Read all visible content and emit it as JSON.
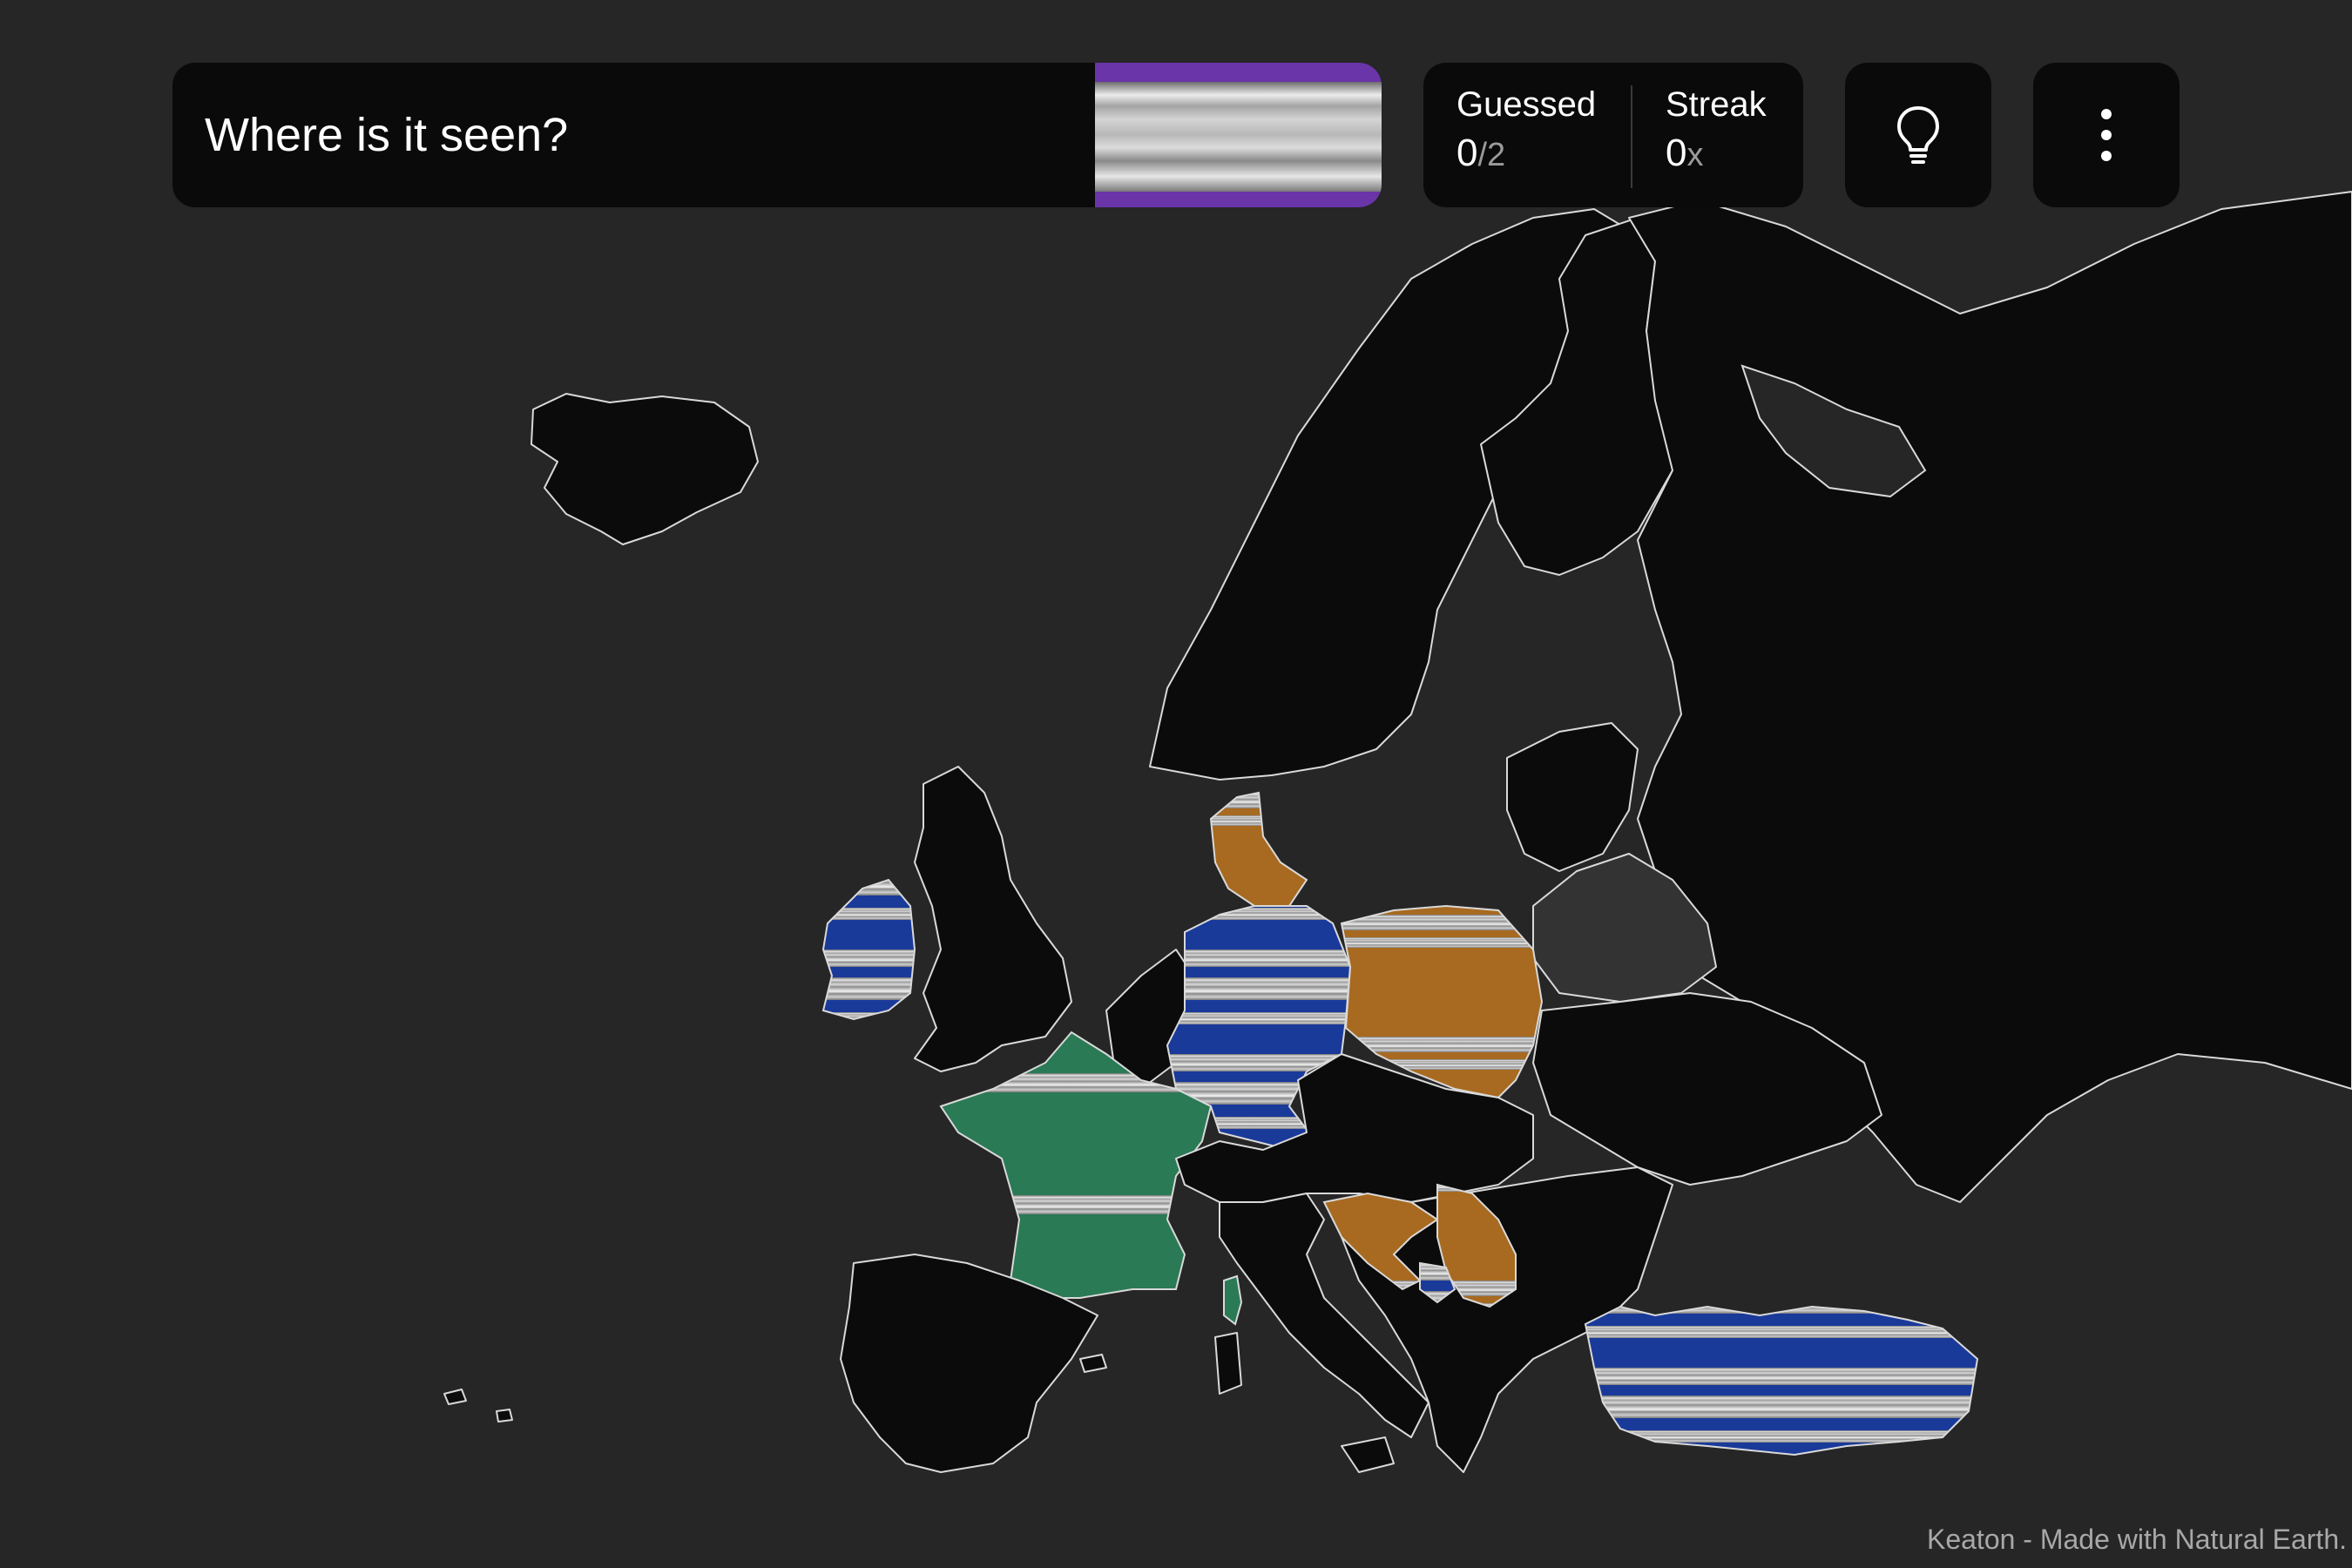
{
  "game": {
    "question": "Where is it seen?",
    "clue_image": "metallic-stripe-swatch",
    "colors": {
      "correct": "#2a7a55",
      "wrong_far": "#1a3a9a",
      "wrong_near": "#a86a20",
      "clue_border": "#6a35a8",
      "background": "#262626",
      "land": "#0b0b0b"
    }
  },
  "stats": {
    "guessed_label": "Guessed",
    "guessed_count": "0",
    "guessed_total": "/2",
    "streak_label": "Streak",
    "streak_count": "0",
    "streak_suffix": "x"
  },
  "controls": {
    "hint_icon": "lightbulb-icon",
    "menu_icon": "more-vertical-icon"
  },
  "map": {
    "highlighted_regions": [
      {
        "region": "France",
        "status": "correct"
      },
      {
        "region": "Corsica",
        "status": "correct"
      },
      {
        "region": "Ireland",
        "status": "wrong_far"
      },
      {
        "region": "Germany",
        "status": "wrong_far"
      },
      {
        "region": "Turkey",
        "status": "wrong_far"
      },
      {
        "region": "Montenegro",
        "status": "wrong_far"
      },
      {
        "region": "Poland",
        "status": "wrong_near"
      },
      {
        "region": "Denmark",
        "status": "wrong_near"
      },
      {
        "region": "Croatia",
        "status": "wrong_near"
      },
      {
        "region": "Serbia",
        "status": "wrong_near"
      }
    ]
  },
  "footer": {
    "credit": "Keaton - Made with Natural Earth."
  }
}
